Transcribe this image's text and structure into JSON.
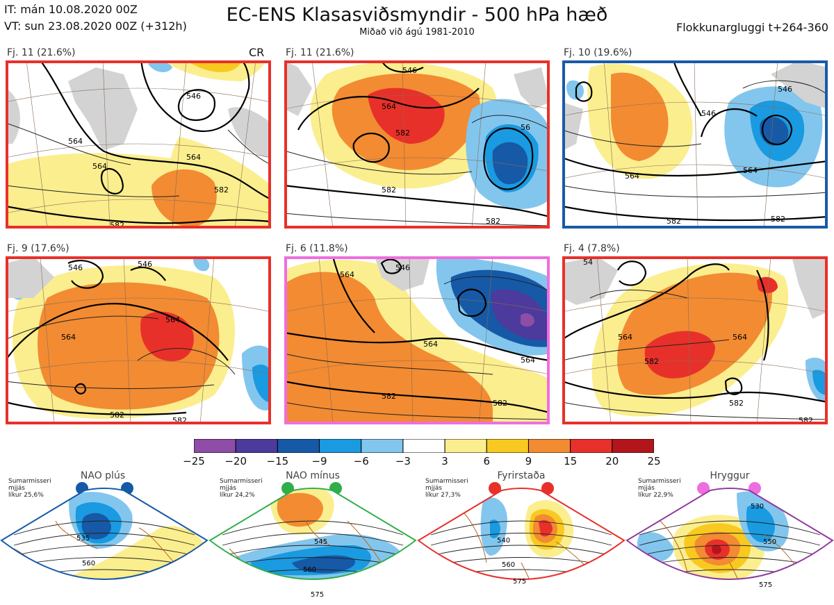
{
  "header": {
    "init_time": "IT: mán 10.08.2020 00Z",
    "valid_time": "VT: sun 23.08.2020 00Z  (+312h)",
    "title": "EC-ENS Klasasviðsmyndir - 500 hPa hæð",
    "subtitle": "Miðað við ágú 1981-2010",
    "window": "Flokkunargluggi t+264-360"
  },
  "clusters": [
    {
      "label": "Fj. 11 (21.6%)",
      "border_color": "#e8302a",
      "tag": "CR",
      "contours": [
        "546",
        "564",
        "564",
        "564",
        "582",
        "582"
      ]
    },
    {
      "label": "Fj. 11 (21.6%)",
      "border_color": "#e8302a",
      "contours": [
        "546",
        "564",
        "582",
        "582",
        "582",
        "56"
      ]
    },
    {
      "label": "Fj. 10 (19.6%)",
      "border_color": "#1a5aa6",
      "contours": [
        "546",
        "564",
        "546",
        "564",
        "582",
        "582"
      ]
    },
    {
      "label": "Fj. 9 (17.6%)",
      "border_color": "#e8302a",
      "contours": [
        "546",
        "564",
        "564",
        "582",
        "582",
        "546"
      ]
    },
    {
      "label": "Fj. 6 (11.8%)",
      "border_color": "#ee6ee0",
      "contours": [
        "564",
        "564",
        "582",
        "582",
        "564",
        "546"
      ]
    },
    {
      "label": "Fj. 4 (7.8%)",
      "border_color": "#e8302a",
      "contours": [
        "564",
        "564",
        "582",
        "582",
        "582",
        "54"
      ]
    }
  ],
  "colorbar": {
    "labels": [
      "−25",
      "−20",
      "−15",
      "−9",
      "−6",
      "−3",
      "3",
      "6",
      "9",
      "15",
      "20",
      "25"
    ],
    "colors": [
      "#8e4da6",
      "#4c3a9c",
      "#1659a6",
      "#1a9ae0",
      "#82c6ee",
      "#ffffff",
      "#fbee8e",
      "#f8c920",
      "#f28b32",
      "#e8302a",
      "#b2161c"
    ]
  },
  "regimes": [
    {
      "name": "NAO plús",
      "color": "#1a5aa6",
      "note": [
        "Sumarmisseri",
        "mjjás",
        "líkur 25,6%"
      ],
      "contours": [
        "535",
        "560"
      ]
    },
    {
      "name": "NAO mínus",
      "color": "#2fae4a",
      "note": [
        "Sumarmisseri",
        "mjjás",
        "líkur 24,2%"
      ],
      "contours": [
        "545",
        "560",
        "575"
      ]
    },
    {
      "name": "Fyrirstaða",
      "color": "#e8302a",
      "note": [
        "Sumarmisseri",
        "mjjás",
        "líkur 27,3%"
      ],
      "contours": [
        "540",
        "560",
        "575"
      ]
    },
    {
      "name": "Hryggur",
      "color": "#ee6ee0",
      "note": [
        "Sumarmisseri",
        "mjjás",
        "líkur 22,9%"
      ],
      "contours": [
        "530",
        "550",
        "575"
      ]
    }
  ]
}
